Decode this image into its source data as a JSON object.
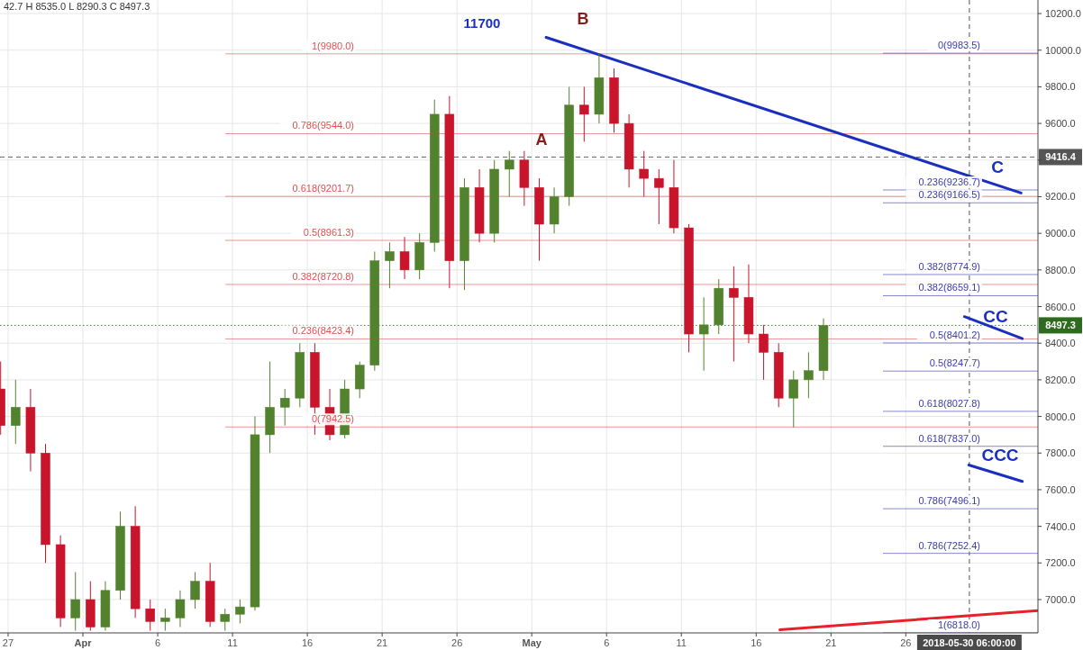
{
  "chart_data": {
    "type": "candlestick",
    "annotations": [
      "42.7  H 8535.0  L 8290.3  C 8497.3",
      "11700",
      "A",
      "B",
      "C",
      "CC",
      "CCC"
    ],
    "x": [
      "2018-03-26T12:00",
      "2018-03-27T12:00",
      "2018-03-28T12:00",
      "2018-03-29T12:00",
      "2018-03-30T12:00",
      "2018-03-31T12:00",
      "2018-04-01T12:00",
      "2018-04-02T12:00",
      "2018-04-03T12:00",
      "2018-04-04T12:00",
      "2018-04-05T12:00",
      "2018-04-06T12:00",
      "2018-04-07T12:00",
      "2018-04-08T12:00",
      "2018-04-09T12:00",
      "2018-04-10T12:00",
      "2018-04-11T12:00",
      "2018-04-12T12:00",
      "2018-04-13T12:00",
      "2018-04-14T12:00",
      "2018-04-15T12:00",
      "2018-04-16T12:00",
      "2018-04-17T12:00",
      "2018-04-18T12:00",
      "2018-04-19T12:00",
      "2018-04-20T12:00",
      "2018-04-21T12:00",
      "2018-04-22T12:00",
      "2018-04-23T12:00",
      "2018-04-24T12:00",
      "2018-04-25T12:00",
      "2018-04-26T12:00",
      "2018-04-27T12:00",
      "2018-04-28T12:00",
      "2018-04-29T12:00",
      "2018-04-30T12:00",
      "2018-05-01T12:00",
      "2018-05-02T12:00",
      "2018-05-03T12:00",
      "2018-05-04T12:00",
      "2018-05-05T12:00",
      "2018-05-06T12:00",
      "2018-05-07T12:00",
      "2018-05-08T12:00",
      "2018-05-09T12:00",
      "2018-05-10T12:00",
      "2018-05-11T12:00",
      "2018-05-12T12:00",
      "2018-05-13T12:00",
      "2018-05-14T12:00",
      "2018-05-15T12:00",
      "2018-05-16T12:00",
      "2018-05-17T12:00",
      "2018-05-18T12:00",
      "2018-05-19T12:00",
      "2018-05-20T12:00"
    ],
    "ohlc": [
      [
        8150,
        8300,
        7900,
        7950
      ],
      [
        7950,
        8200,
        7850,
        8050
      ],
      [
        8050,
        8150,
        7700,
        7800
      ],
      [
        7800,
        7850,
        7200,
        7300
      ],
      [
        7300,
        7350,
        6850,
        6900
      ],
      [
        6900,
        7150,
        6830,
        7000
      ],
      [
        7000,
        7100,
        6830,
        6850
      ],
      [
        6850,
        7100,
        6830,
        7050
      ],
      [
        7050,
        7480,
        7000,
        7400
      ],
      [
        7400,
        7510,
        6900,
        6950
      ],
      [
        6950,
        7000,
        6830,
        6880
      ],
      [
        6880,
        6950,
        6830,
        6900
      ],
      [
        6900,
        7050,
        6850,
        7000
      ],
      [
        7000,
        7150,
        6950,
        7100
      ],
      [
        7100,
        7200,
        6850,
        6880
      ],
      [
        6880,
        6950,
        6830,
        6920
      ],
      [
        6920,
        7000,
        6870,
        6960
      ],
      [
        6960,
        8000,
        6940,
        7900
      ],
      [
        7900,
        8300,
        7800,
        8050
      ],
      [
        8050,
        8150,
        7950,
        8100
      ],
      [
        8100,
        8400,
        8050,
        8350
      ],
      [
        8350,
        8400,
        7900,
        8050
      ],
      [
        8050,
        8150,
        7870,
        7900
      ],
      [
        7900,
        8200,
        7880,
        8150
      ],
      [
        8150,
        8300,
        8100,
        8280
      ],
      [
        8280,
        8900,
        8250,
        8850
      ],
      [
        8850,
        8950,
        8700,
        8900
      ],
      [
        8900,
        8980,
        8750,
        8800
      ],
      [
        8800,
        9000,
        8750,
        8950
      ],
      [
        8950,
        9730,
        8900,
        9650
      ],
      [
        9650,
        9750,
        8700,
        8850
      ],
      [
        8850,
        9300,
        8690,
        9250
      ],
      [
        9250,
        9350,
        8950,
        9000
      ],
      [
        9000,
        9400,
        8950,
        9350
      ],
      [
        9350,
        9450,
        9200,
        9400
      ],
      [
        9400,
        9450,
        9150,
        9250
      ],
      [
        9250,
        9300,
        8850,
        9050
      ],
      [
        9050,
        9250,
        9000,
        9200
      ],
      [
        9200,
        9800,
        9150,
        9700
      ],
      [
        9700,
        9800,
        9500,
        9650
      ],
      [
        9650,
        9980,
        9600,
        9850
      ],
      [
        9850,
        9900,
        9550,
        9600
      ],
      [
        9600,
        9650,
        9250,
        9350
      ],
      [
        9350,
        9450,
        9200,
        9300
      ],
      [
        9300,
        9350,
        9050,
        9250
      ],
      [
        9250,
        9400,
        9000,
        9030
      ],
      [
        9030,
        9050,
        8350,
        8450
      ],
      [
        8450,
        8650,
        8250,
        8500
      ],
      [
        8500,
        8750,
        8450,
        8700
      ],
      [
        8700,
        8820,
        8300,
        8650
      ],
      [
        8650,
        8830,
        8400,
        8450
      ],
      [
        8450,
        8500,
        8200,
        8350
      ],
      [
        8350,
        8400,
        8050,
        8100
      ],
      [
        8100,
        8250,
        7940,
        8200
      ],
      [
        8200,
        8350,
        8100,
        8250
      ],
      [
        8250,
        8535,
        8200,
        8497.3
      ]
    ],
    "series": [
      {
        "type": "line",
        "color": "#1a2fbf",
        "x": [
          "2018-05-01T23:00",
          "2018-06-02T17:00"
        ],
        "values": [
          10070,
          9220
        ]
      },
      {
        "type": "line",
        "color": "#1a2fbf",
        "x": [
          "2018-05-29T22:00",
          "2018-06-02T19:00"
        ],
        "values": [
          8545,
          8425
        ]
      },
      {
        "type": "line",
        "color": "#1a2fbf",
        "x": [
          "2018-05-30T05:00",
          "2018-06-02T19:00"
        ],
        "values": [
          7735,
          7645
        ]
      },
      {
        "type": "line",
        "color": "#e8202a",
        "x": [
          "2018-05-17T14:00",
          "2018-06-03T20:00"
        ],
        "values": [
          6835,
          6940
        ]
      }
    ],
    "ref_lines": [
      {
        "axis": "y",
        "value": 9980,
        "label": "1(9980.0)",
        "color": "#e05050"
      },
      {
        "axis": "y",
        "value": 9544,
        "label": "0.786(9544.0)",
        "color": "#e05050"
      },
      {
        "axis": "y",
        "value": 9201.7,
        "label": "0.618(9201.7)",
        "color": "#e05050"
      },
      {
        "axis": "y",
        "value": 8961.3,
        "label": "0.5(8961.3)",
        "color": "#e05050"
      },
      {
        "axis": "y",
        "value": 8720.8,
        "label": "0.382(8720.8)",
        "color": "#e05050"
      },
      {
        "axis": "y",
        "value": 8423.4,
        "label": "0.236(8423.4)",
        "color": "#e05050"
      },
      {
        "axis": "y",
        "value": 7942.5,
        "label": "0(7942.5)",
        "color": "#e05050"
      },
      {
        "axis": "y",
        "value": 9983.5,
        "label": "0(9983.5)",
        "color": "#3b3bb0"
      },
      {
        "axis": "y",
        "value": 9236.7,
        "label": "0.236(9236.7)",
        "color": "#3b3bb0"
      },
      {
        "axis": "y",
        "value": 9166.5,
        "label": "0.236(9166.5)",
        "color": "#3b3bb0"
      },
      {
        "axis": "y",
        "value": 8774.9,
        "label": "0.382(8774.9)",
        "color": "#3b3bb0"
      },
      {
        "axis": "y",
        "value": 8659.1,
        "label": "0.382(8659.1)",
        "color": "#3b3bb0"
      },
      {
        "axis": "y",
        "value": 8401.2,
        "label": "0.5(8401.2)",
        "color": "#3b3bb0"
      },
      {
        "axis": "y",
        "value": 8247.7,
        "label": "0.5(8247.7)",
        "color": "#3b3bb0"
      },
      {
        "axis": "y",
        "value": 8027.8,
        "label": "0.618(8027.8)",
        "color": "#3b3bb0"
      },
      {
        "axis": "y",
        "value": 7837,
        "label": "0.618(7837.0)",
        "color": "#3b3bb0"
      },
      {
        "axis": "y",
        "value": 7496.1,
        "label": "0.786(7496.1)",
        "color": "#3b3bb0"
      },
      {
        "axis": "y",
        "value": 7252.4,
        "label": "0.786(7252.4)",
        "color": "#3b3bb0"
      },
      {
        "axis": "y",
        "value": 6818,
        "label": "1(6818.0)",
        "color": "#3b3bb0"
      },
      {
        "axis": "y",
        "value": 9416.4,
        "label": "9416.4",
        "color": "#555555",
        "line_style": "dashed"
      },
      {
        "axis": "y",
        "value": 8497.3,
        "label": "8497.3",
        "color": "#2e6b1f",
        "line_style": "dotted"
      },
      {
        "axis": "x",
        "value": "2018-05-30T06:00",
        "label": "2018-05-30 06:00:00",
        "color": "#555555",
        "line_style": "dashed"
      }
    ],
    "xlim": [
      "2018-03-26T11:00",
      "2018-06-03T20:00"
    ],
    "xticks": [
      {
        "value": "2018-03-27",
        "label": "27"
      },
      {
        "value": "2018-04-01",
        "label": "Apr"
      },
      {
        "value": "2018-04-06",
        "label": "6"
      },
      {
        "value": "2018-04-11",
        "label": "11"
      },
      {
        "value": "2018-04-16",
        "label": "16"
      },
      {
        "value": "2018-04-21",
        "label": "21"
      },
      {
        "value": "2018-04-26",
        "label": "26"
      },
      {
        "value": "2018-05-01",
        "label": "May"
      },
      {
        "value": "2018-05-06",
        "label": "6"
      },
      {
        "value": "2018-05-11",
        "label": "11"
      },
      {
        "value": "2018-05-16",
        "label": "16"
      },
      {
        "value": "2018-05-21",
        "label": "21"
      },
      {
        "value": "2018-05-26",
        "label": "26"
      }
    ],
    "ylim": [
      6818,
      10274
    ],
    "yticks": [
      {
        "value": 7000,
        "label": "7000.0"
      },
      {
        "value": 7200,
        "label": "7200.0"
      },
      {
        "value": 7400,
        "label": "7400.0"
      },
      {
        "value": 7600,
        "label": "7600.0"
      },
      {
        "value": 7800,
        "label": "7800.0"
      },
      {
        "value": 8000,
        "label": "8000.0"
      },
      {
        "value": 8200,
        "label": "8200.0"
      },
      {
        "value": 8400,
        "label": "8400.0"
      },
      {
        "value": 8600,
        "label": "8600.0"
      },
      {
        "value": 8800,
        "label": "8800.0"
      },
      {
        "value": 9000,
        "label": "9000.0"
      },
      {
        "value": 9200,
        "label": "9200.0"
      },
      {
        "value": 9400,
        "label": null
      },
      {
        "value": 9600,
        "label": "9600.0"
      },
      {
        "value": 9800,
        "label": "9800.0"
      },
      {
        "value": 10000,
        "label": "10000.0"
      },
      {
        "value": 10200,
        "label": "10200.0"
      }
    ],
    "grid": true
  }
}
